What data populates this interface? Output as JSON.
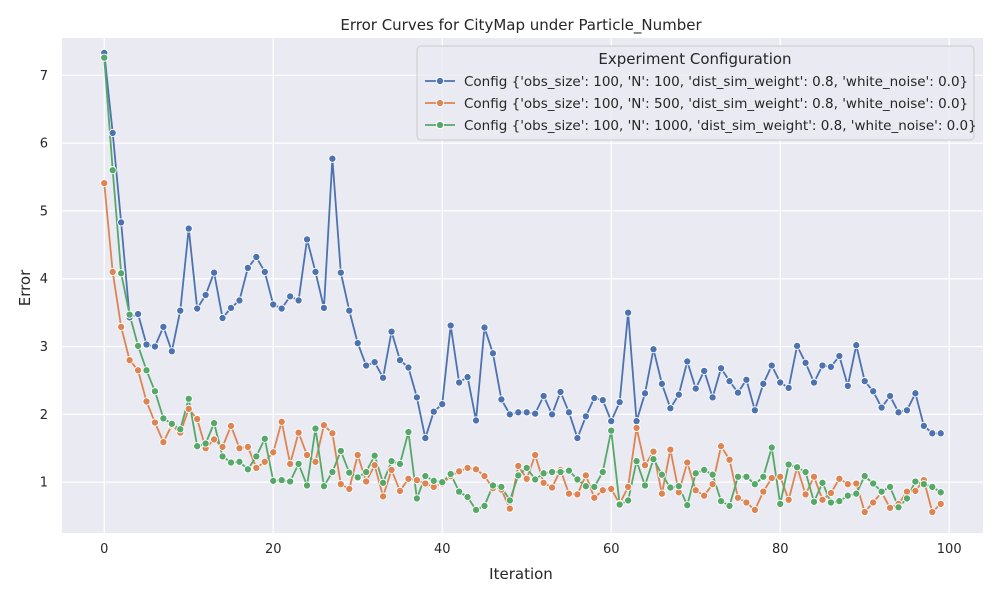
{
  "chart_data": {
    "type": "line",
    "title": "Error Curves for CityMap under Particle_Number",
    "xlabel": "Iteration",
    "ylabel": "Error",
    "xlim": [
      -5,
      104
    ],
    "ylim": [
      0.25,
      7.55
    ],
    "xticks": [
      0,
      20,
      40,
      60,
      80,
      100
    ],
    "yticks": [
      1,
      2,
      3,
      4,
      5,
      6,
      7
    ],
    "grid": true,
    "legend": {
      "title": "Experiment Configuration",
      "placement": "top-right"
    },
    "x": [
      0,
      1,
      2,
      3,
      4,
      5,
      6,
      7,
      8,
      9,
      10,
      11,
      12,
      13,
      14,
      15,
      16,
      17,
      18,
      19,
      20,
      21,
      22,
      23,
      24,
      25,
      26,
      27,
      28,
      29,
      30,
      31,
      32,
      33,
      34,
      35,
      36,
      37,
      38,
      39,
      40,
      41,
      42,
      43,
      44,
      45,
      46,
      47,
      48,
      49,
      50,
      51,
      52,
      53,
      54,
      55,
      56,
      57,
      58,
      59,
      60,
      61,
      62,
      63,
      64,
      65,
      66,
      67,
      68,
      69,
      70,
      71,
      72,
      73,
      74,
      75,
      76,
      77,
      78,
      79,
      80,
      81,
      82,
      83,
      84,
      85,
      86,
      87,
      88,
      89,
      90,
      91,
      92,
      93,
      94,
      95,
      96,
      97,
      98,
      99
    ],
    "series": [
      {
        "name": "Config {'obs_size': 100, 'N': 100, 'dist_sim_weight': 0.8, 'white_noise': 0.0}",
        "color": "#4c72b0",
        "values": [
          7.33,
          6.15,
          4.83,
          3.43,
          3.48,
          3.03,
          3.0,
          3.29,
          2.93,
          3.53,
          4.74,
          3.56,
          3.76,
          4.09,
          3.42,
          3.57,
          3.68,
          4.16,
          4.32,
          4.1,
          3.62,
          3.56,
          3.74,
          3.68,
          4.58,
          4.1,
          3.57,
          5.77,
          4.09,
          3.53,
          3.05,
          2.72,
          2.77,
          2.54,
          3.22,
          2.8,
          2.69,
          2.25,
          1.65,
          2.04,
          2.15,
          3.31,
          2.47,
          2.55,
          1.91,
          3.28,
          2.9,
          2.22,
          2.0,
          2.03,
          2.03,
          2.01,
          2.27,
          2.0,
          2.33,
          2.03,
          1.65,
          1.97,
          2.24,
          2.21,
          1.9,
          2.18,
          3.5,
          1.9,
          2.31,
          2.96,
          2.45,
          2.09,
          2.29,
          2.78,
          2.38,
          2.64,
          2.25,
          2.68,
          2.49,
          2.32,
          2.51,
          2.06,
          2.45,
          2.72,
          2.47,
          2.39,
          3.01,
          2.76,
          2.47,
          2.72,
          2.7,
          2.86,
          2.42,
          3.02,
          2.49,
          2.34,
          2.1,
          2.27,
          2.03,
          2.06,
          2.31,
          1.83,
          1.72,
          1.72
        ]
      },
      {
        "name": "Config {'obs_size': 100, 'N': 500, 'dist_sim_weight': 0.8, 'white_noise': 0.0}",
        "color": "#dd8452",
        "values": [
          5.41,
          4.1,
          3.29,
          2.8,
          2.65,
          2.19,
          1.88,
          1.59,
          1.84,
          1.73,
          2.08,
          1.93,
          1.5,
          1.63,
          1.52,
          1.83,
          1.5,
          1.52,
          1.21,
          1.3,
          1.44,
          1.89,
          1.27,
          1.73,
          1.4,
          1.3,
          1.84,
          1.72,
          0.97,
          0.9,
          1.4,
          1.01,
          1.25,
          0.79,
          1.18,
          0.87,
          1.05,
          1.03,
          0.98,
          0.93,
          0.98,
          1.09,
          1.16,
          1.21,
          1.19,
          1.09,
          0.91,
          0.89,
          0.61,
          1.24,
          1.05,
          1.4,
          0.99,
          0.92,
          1.18,
          0.83,
          0.82,
          1.1,
          0.77,
          0.88,
          0.9,
          0.68,
          0.93,
          1.8,
          1.25,
          1.45,
          0.83,
          1.48,
          0.85,
          1.29,
          0.88,
          0.8,
          0.97,
          1.53,
          1.33,
          0.77,
          0.7,
          0.59,
          0.86,
          1.06,
          1.08,
          0.74,
          1.22,
          0.82,
          1.08,
          0.74,
          0.84,
          1.05,
          0.97,
          0.98,
          0.56,
          0.7,
          0.85,
          0.62,
          0.68,
          0.86,
          0.87,
          1.03,
          0.56,
          0.68
        ]
      },
      {
        "name": "Config {'obs_size': 100, 'N': 1000, 'dist_sim_weight': 0.8, 'white_noise': 0.0}",
        "color": "#55a868",
        "values": [
          7.26,
          5.6,
          4.08,
          3.47,
          3.01,
          2.65,
          2.34,
          1.94,
          1.86,
          1.78,
          2.23,
          1.53,
          1.57,
          1.87,
          1.38,
          1.29,
          1.3,
          1.19,
          1.38,
          1.64,
          1.02,
          1.03,
          1.01,
          1.27,
          0.95,
          1.79,
          0.94,
          1.15,
          1.46,
          1.14,
          1.07,
          1.15,
          1.39,
          0.99,
          1.31,
          1.27,
          1.74,
          0.76,
          1.09,
          1.02,
          1.0,
          1.12,
          0.86,
          0.78,
          0.59,
          0.65,
          0.95,
          0.93,
          0.73,
          1.1,
          1.21,
          1.04,
          1.13,
          1.15,
          1.15,
          1.17,
          1.04,
          0.94,
          0.93,
          1.15,
          1.76,
          0.67,
          0.73,
          1.31,
          0.95,
          1.34,
          1.11,
          0.92,
          0.94,
          0.66,
          1.13,
          1.18,
          1.11,
          0.72,
          0.65,
          1.08,
          1.08,
          0.97,
          1.08,
          1.51,
          0.68,
          1.26,
          1.22,
          1.15,
          0.71,
          0.99,
          0.7,
          0.72,
          0.8,
          0.83,
          1.09,
          0.98,
          0.86,
          0.93,
          0.63,
          0.76,
          1.01,
          0.97,
          0.93,
          0.85
        ]
      }
    ]
  }
}
